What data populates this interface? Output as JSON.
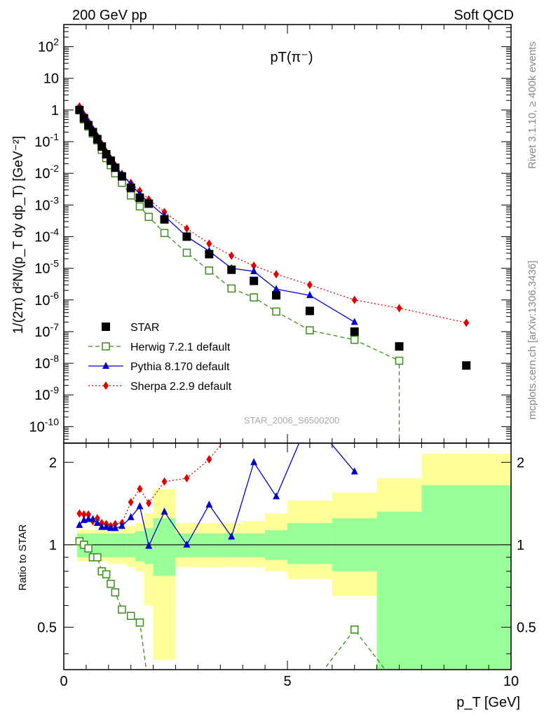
{
  "header": {
    "left": "200 GeV pp",
    "right": "Soft QCD"
  },
  "side_labels": {
    "top": "Rivet 3.1.10, ≥ 400k events",
    "bottom": "mcplots.cern.ch [arXiv:1306.3436]"
  },
  "chart_data": {
    "type": "scatter",
    "title": "pT(π⁻)",
    "watermark": "STAR_2006_S6500200",
    "xlabel": "p_T [GeV]",
    "ylabel": "1/(2π) d²N/(p_T dy dp_T) [GeV⁻²]",
    "ratio_ylabel": "Ratio to STAR",
    "xlim": [
      0,
      10
    ],
    "ylim": [
      3e-11,
      500
    ],
    "yscale": "log",
    "ratio_ylim": [
      0.35,
      2.35
    ],
    "ratio_yscale": "log",
    "x_ticks": [
      "0",
      "5",
      "10"
    ],
    "y_ticks": [
      "10^-10",
      "10^-9",
      "10^-8",
      "10^-7",
      "10^-6",
      "10^-5",
      "10^-4",
      "10^-3",
      "10^-2",
      "10^-1",
      "1",
      "10",
      "10^2"
    ],
    "ratio_ticks": [
      "0.5",
      "1",
      "2"
    ],
    "legend_position": "lower-left",
    "colors": {
      "star": "#000000",
      "herwig": "#3a8d1a",
      "pythia": "#0000cc",
      "sherpa": "#e00000",
      "band_inner": "#99ff99",
      "band_outer": "#ffff99"
    },
    "bins": [
      [
        0.3,
        0.4
      ],
      [
        0.4,
        0.5
      ],
      [
        0.5,
        0.6
      ],
      [
        0.6,
        0.7
      ],
      [
        0.7,
        0.8
      ],
      [
        0.8,
        0.9
      ],
      [
        0.9,
        1.0
      ],
      [
        1.0,
        1.1
      ],
      [
        1.1,
        1.2
      ],
      [
        1.2,
        1.4
      ],
      [
        1.4,
        1.6
      ],
      [
        1.6,
        1.8
      ],
      [
        1.8,
        2.0
      ],
      [
        2.0,
        2.5
      ],
      [
        2.5,
        3.0
      ],
      [
        3.0,
        3.5
      ],
      [
        3.5,
        4.0
      ],
      [
        4.0,
        4.5
      ],
      [
        4.5,
        5.0
      ],
      [
        5.0,
        6.0
      ],
      [
        6.0,
        7.0
      ],
      [
        7.0,
        8.0
      ],
      [
        8.0,
        10.0
      ]
    ],
    "band_inner": [
      [
        0.9,
        1.1
      ],
      [
        0.9,
        1.1
      ],
      [
        0.9,
        1.1
      ],
      [
        0.9,
        1.1
      ],
      [
        0.9,
        1.1
      ],
      [
        0.9,
        1.1
      ],
      [
        0.9,
        1.1
      ],
      [
        0.9,
        1.1
      ],
      [
        0.9,
        1.1
      ],
      [
        0.9,
        1.1
      ],
      [
        0.9,
        1.1
      ],
      [
        0.87,
        1.12
      ],
      [
        0.85,
        1.15
      ],
      [
        0.77,
        1.25
      ],
      [
        0.9,
        1.1
      ],
      [
        0.9,
        1.1
      ],
      [
        0.9,
        1.1
      ],
      [
        0.9,
        1.1
      ],
      [
        0.88,
        1.13
      ],
      [
        0.85,
        1.2
      ],
      [
        0.8,
        1.25
      ],
      [
        0.35,
        1.32
      ],
      [
        0.35,
        1.65
      ]
    ],
    "band_outer": [
      [
        0.87,
        1.13
      ],
      [
        0.87,
        1.13
      ],
      [
        0.87,
        1.13
      ],
      [
        0.87,
        1.13
      ],
      [
        0.87,
        1.13
      ],
      [
        0.87,
        1.13
      ],
      [
        0.87,
        1.13
      ],
      [
        0.85,
        1.15
      ],
      [
        0.85,
        1.15
      ],
      [
        0.85,
        1.15
      ],
      [
        0.83,
        1.17
      ],
      [
        0.8,
        1.2
      ],
      [
        0.6,
        1.3
      ],
      [
        0.38,
        1.6
      ],
      [
        0.83,
        1.2
      ],
      [
        0.83,
        1.2
      ],
      [
        0.83,
        1.2
      ],
      [
        0.83,
        1.22
      ],
      [
        0.8,
        1.3
      ],
      [
        0.75,
        1.45
      ],
      [
        0.65,
        1.55
      ],
      [
        0.35,
        1.75
      ],
      [
        0.35,
        2.15
      ]
    ],
    "series": [
      {
        "name": "STAR",
        "marker": "square-filled",
        "style": "none",
        "x": [
          0.35,
          0.45,
          0.55,
          0.65,
          0.75,
          0.85,
          0.95,
          1.05,
          1.15,
          1.3,
          1.5,
          1.7,
          1.9,
          2.25,
          2.75,
          3.25,
          3.75,
          4.25,
          4.75,
          5.5,
          6.5,
          7.5,
          9.0
        ],
        "y": [
          1.0,
          0.55,
          0.33,
          0.2,
          0.12,
          0.07,
          0.04,
          0.025,
          0.015,
          0.008,
          0.0035,
          0.0017,
          0.0011,
          0.00035,
          0.0001,
          2.8e-05,
          9e-06,
          4e-06,
          1.4e-06,
          4.5e-07,
          1e-07,
          3.4e-08,
          8.5e-09
        ]
      },
      {
        "name": "Herwig 7.2.1 default",
        "marker": "square-open",
        "style": "dashed",
        "x": [
          0.35,
          0.45,
          0.55,
          0.65,
          0.75,
          0.85,
          0.95,
          1.05,
          1.15,
          1.3,
          1.5,
          1.7,
          1.9,
          2.25,
          2.75,
          3.25,
          3.75,
          4.25,
          4.75,
          5.5,
          6.5,
          7.5
        ],
        "y": [
          1.0,
          0.5,
          0.3,
          0.18,
          0.11,
          0.055,
          0.03,
          0.018,
          0.01,
          0.005,
          0.002,
          0.0009,
          0.00042,
          0.00013,
          3.1e-05,
          8.5e-06,
          2.3e-06,
          1.2e-06,
          4.3e-07,
          1.1e-07,
          5.5e-08,
          1.2e-08
        ],
        "ratio": [
          1.03,
          1.0,
          0.97,
          0.9,
          0.9,
          0.8,
          0.78,
          0.72,
          0.67,
          0.58,
          0.55,
          0.52,
          0.3,
          0.2,
          0.2,
          0.2,
          0.2,
          0.2,
          0.2,
          0.3,
          0.49,
          0.3
        ]
      },
      {
        "name": "Pythia 8.170 default",
        "marker": "triangle-filled",
        "style": "solid",
        "x": [
          0.35,
          0.45,
          0.55,
          0.65,
          0.75,
          0.85,
          0.95,
          1.05,
          1.15,
          1.3,
          1.5,
          1.7,
          1.9,
          2.25,
          2.75,
          3.25,
          3.75,
          4.25,
          4.75,
          5.5,
          6.5
        ],
        "y": [
          1.15,
          0.65,
          0.4,
          0.24,
          0.14,
          0.08,
          0.045,
          0.028,
          0.017,
          0.0095,
          0.0045,
          0.0022,
          0.0012,
          0.00045,
          0.0001,
          3.5e-05,
          1e-05,
          8e-06,
          2.2e-06,
          1.4e-06,
          2e-07
        ],
        "ratio": [
          1.18,
          1.23,
          1.24,
          1.24,
          1.2,
          1.16,
          1.16,
          1.15,
          1.15,
          1.17,
          1.26,
          1.38,
          0.99,
          1.32,
          1.0,
          1.4,
          1.07,
          2.0,
          1.5,
          2.9,
          1.85
        ]
      },
      {
        "name": "Sherpa 2.2.9 default",
        "marker": "diamond-filled",
        "style": "dotted",
        "x": [
          0.35,
          0.45,
          0.55,
          0.65,
          0.75,
          0.85,
          0.95,
          1.05,
          1.15,
          1.3,
          1.5,
          1.7,
          1.9,
          2.25,
          2.75,
          3.25,
          3.75,
          4.25,
          4.75,
          5.5,
          6.5,
          7.5,
          9.0
        ],
        "y": [
          1.3,
          0.72,
          0.43,
          0.25,
          0.15,
          0.085,
          0.048,
          0.029,
          0.018,
          0.0095,
          0.005,
          0.0028,
          0.0015,
          0.0006,
          0.00018,
          6e-05,
          2.5e-05,
          1.2e-05,
          6.5e-06,
          3e-06,
          1e-06,
          5.5e-07,
          1.9e-07
        ],
        "ratio": [
          1.3,
          1.29,
          1.29,
          1.22,
          1.25,
          1.2,
          1.19,
          1.17,
          1.19,
          1.2,
          1.43,
          1.6,
          1.42,
          1.7,
          1.75,
          2.05,
          2.6,
          3.0,
          4.0,
          6.0,
          10.0,
          16.0,
          22.0
        ]
      }
    ]
  }
}
